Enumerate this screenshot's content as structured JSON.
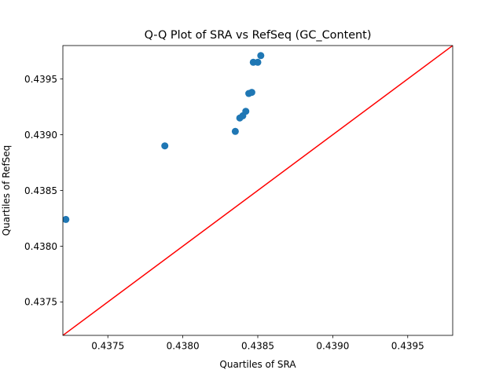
{
  "chart_data": {
    "type": "scatter",
    "title": "Q-Q Plot of SRA vs RefSeq (GC_Content)",
    "xlabel": "Quartiles of SRA",
    "ylabel": "Quartiles of RefSeq",
    "xlim": [
      0.4372,
      0.4398
    ],
    "ylim": [
      0.4372,
      0.4398
    ],
    "x_ticks": [
      0.4375,
      0.438,
      0.4385,
      0.439,
      0.4395
    ],
    "y_ticks": [
      0.4375,
      0.438,
      0.4385,
      0.439,
      0.4395
    ],
    "tick_format_decimals": 4,
    "grid": false,
    "point_color": "#1f77b4",
    "reference_line_color": "#ff0000",
    "reference_line": [
      [
        0.4372,
        0.4372
      ],
      [
        0.4398,
        0.4398
      ]
    ],
    "points": [
      {
        "x": 0.43722,
        "y": 0.43824
      },
      {
        "x": 0.43788,
        "y": 0.4389
      },
      {
        "x": 0.43835,
        "y": 0.43903
      },
      {
        "x": 0.43838,
        "y": 0.43915
      },
      {
        "x": 0.4384,
        "y": 0.43917
      },
      {
        "x": 0.43842,
        "y": 0.43921
      },
      {
        "x": 0.43844,
        "y": 0.43937
      },
      {
        "x": 0.43846,
        "y": 0.43938
      },
      {
        "x": 0.43847,
        "y": 0.43965
      },
      {
        "x": 0.4385,
        "y": 0.43965
      },
      {
        "x": 0.43852,
        "y": 0.43971
      }
    ]
  }
}
